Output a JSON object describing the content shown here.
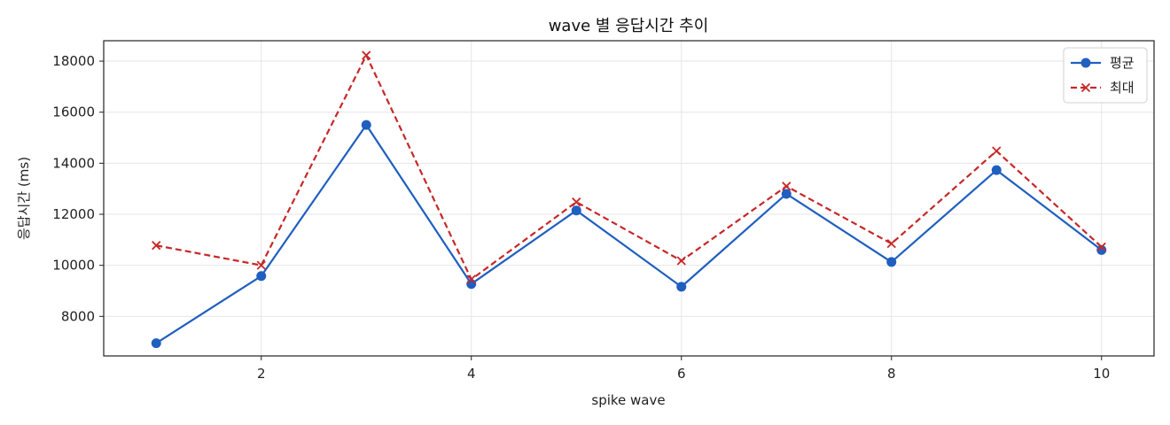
{
  "chart_data": {
    "type": "line",
    "title": "wave 별 응답시간 추이",
    "xlabel": "spike wave",
    "ylabel": "응답시간 (ms)",
    "x": [
      1,
      2,
      3,
      4,
      5,
      6,
      7,
      8,
      9,
      10
    ],
    "xlim": [
      0.5,
      10.5
    ],
    "ylim": [
      6450,
      18800
    ],
    "xticks": [
      2,
      4,
      6,
      8,
      10
    ],
    "yticks": [
      8000,
      10000,
      12000,
      14000,
      16000,
      18000
    ],
    "grid": true,
    "legend_position": "top-right",
    "series": [
      {
        "name": "평균",
        "color": "#1f5fbf",
        "marker": "circle",
        "line_style": "solid",
        "values": [
          6950,
          9580,
          15500,
          9270,
          12150,
          9160,
          12800,
          10130,
          13730,
          10600
        ]
      },
      {
        "name": "최대",
        "color": "#c62828",
        "marker": "x",
        "line_style": "dashed",
        "values": [
          10780,
          10000,
          18230,
          9450,
          12480,
          10180,
          13100,
          10850,
          14480,
          10720
        ]
      }
    ]
  }
}
